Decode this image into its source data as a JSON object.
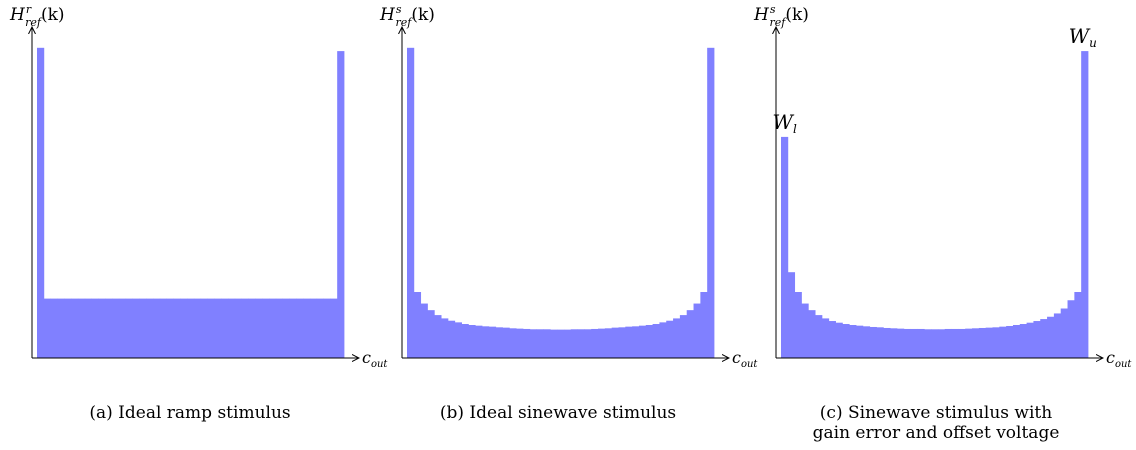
{
  "figure": {
    "captions": [
      {
        "label": "(a)",
        "line1": "Ideal ramp stimulus",
        "line2": ""
      },
      {
        "label": "(b)",
        "line1": "Ideal sinewave stimulus",
        "line2": ""
      },
      {
        "label": "(c)",
        "line1": "Sinewave stimulus with",
        "line2": "gain error and offset voltage"
      }
    ]
  },
  "colors": {
    "bar": "#8080ff",
    "axis": "#000000"
  },
  "chart_data": [
    {
      "type": "bar",
      "ylabel": {
        "base": "H",
        "sup": "r",
        "sub": "ref",
        "arg": "(k)"
      },
      "xlabel": {
        "base": "c",
        "sub": "out"
      },
      "ylim": [
        0,
        1
      ],
      "annotations": [],
      "values": [
        0.94,
        0.18,
        0.18,
        0.18,
        0.18,
        0.18,
        0.18,
        0.18,
        0.18,
        0.18,
        0.18,
        0.18,
        0.18,
        0.18,
        0.18,
        0.18,
        0.18,
        0.18,
        0.18,
        0.18,
        0.18,
        0.18,
        0.18,
        0.18,
        0.18,
        0.18,
        0.18,
        0.18,
        0.18,
        0.18,
        0.18,
        0.18,
        0.18,
        0.18,
        0.18,
        0.18,
        0.18,
        0.18,
        0.18,
        0.18,
        0.18,
        0.18,
        0.18,
        0.18,
        0.93
      ]
    },
    {
      "type": "bar",
      "ylabel": {
        "base": "H",
        "sup": "s",
        "sub": "ref",
        "arg": "(k)"
      },
      "xlabel": {
        "base": "c",
        "sub": "out"
      },
      "ylim": [
        0,
        1
      ],
      "annotations": [],
      "values": [
        0.94,
        0.2,
        0.165,
        0.145,
        0.13,
        0.12,
        0.113,
        0.108,
        0.103,
        0.1,
        0.098,
        0.096,
        0.095,
        0.093,
        0.092,
        0.09,
        0.089,
        0.088,
        0.087,
        0.087,
        0.087,
        0.086,
        0.086,
        0.086,
        0.087,
        0.087,
        0.087,
        0.088,
        0.089,
        0.09,
        0.092,
        0.093,
        0.095,
        0.096,
        0.098,
        0.1,
        0.103,
        0.108,
        0.113,
        0.12,
        0.13,
        0.145,
        0.165,
        0.2,
        0.94
      ]
    },
    {
      "type": "bar",
      "ylabel": {
        "base": "H",
        "sup": "s",
        "sub": "ref",
        "arg": "(k)"
      },
      "xlabel": {
        "base": "c",
        "sub": "out"
      },
      "ylim": [
        0,
        1
      ],
      "annotations": [
        {
          "text": "W",
          "sub": "l",
          "bar": 0
        },
        {
          "text": "W",
          "sub": "u",
          "bar": 44
        }
      ],
      "values": [
        0.67,
        0.26,
        0.2,
        0.165,
        0.145,
        0.13,
        0.12,
        0.112,
        0.107,
        0.103,
        0.1,
        0.098,
        0.096,
        0.094,
        0.093,
        0.091,
        0.09,
        0.089,
        0.088,
        0.088,
        0.088,
        0.087,
        0.087,
        0.087,
        0.088,
        0.088,
        0.088,
        0.089,
        0.09,
        0.091,
        0.092,
        0.093,
        0.095,
        0.097,
        0.1,
        0.103,
        0.107,
        0.112,
        0.118,
        0.125,
        0.135,
        0.15,
        0.175,
        0.2,
        0.93
      ]
    }
  ]
}
